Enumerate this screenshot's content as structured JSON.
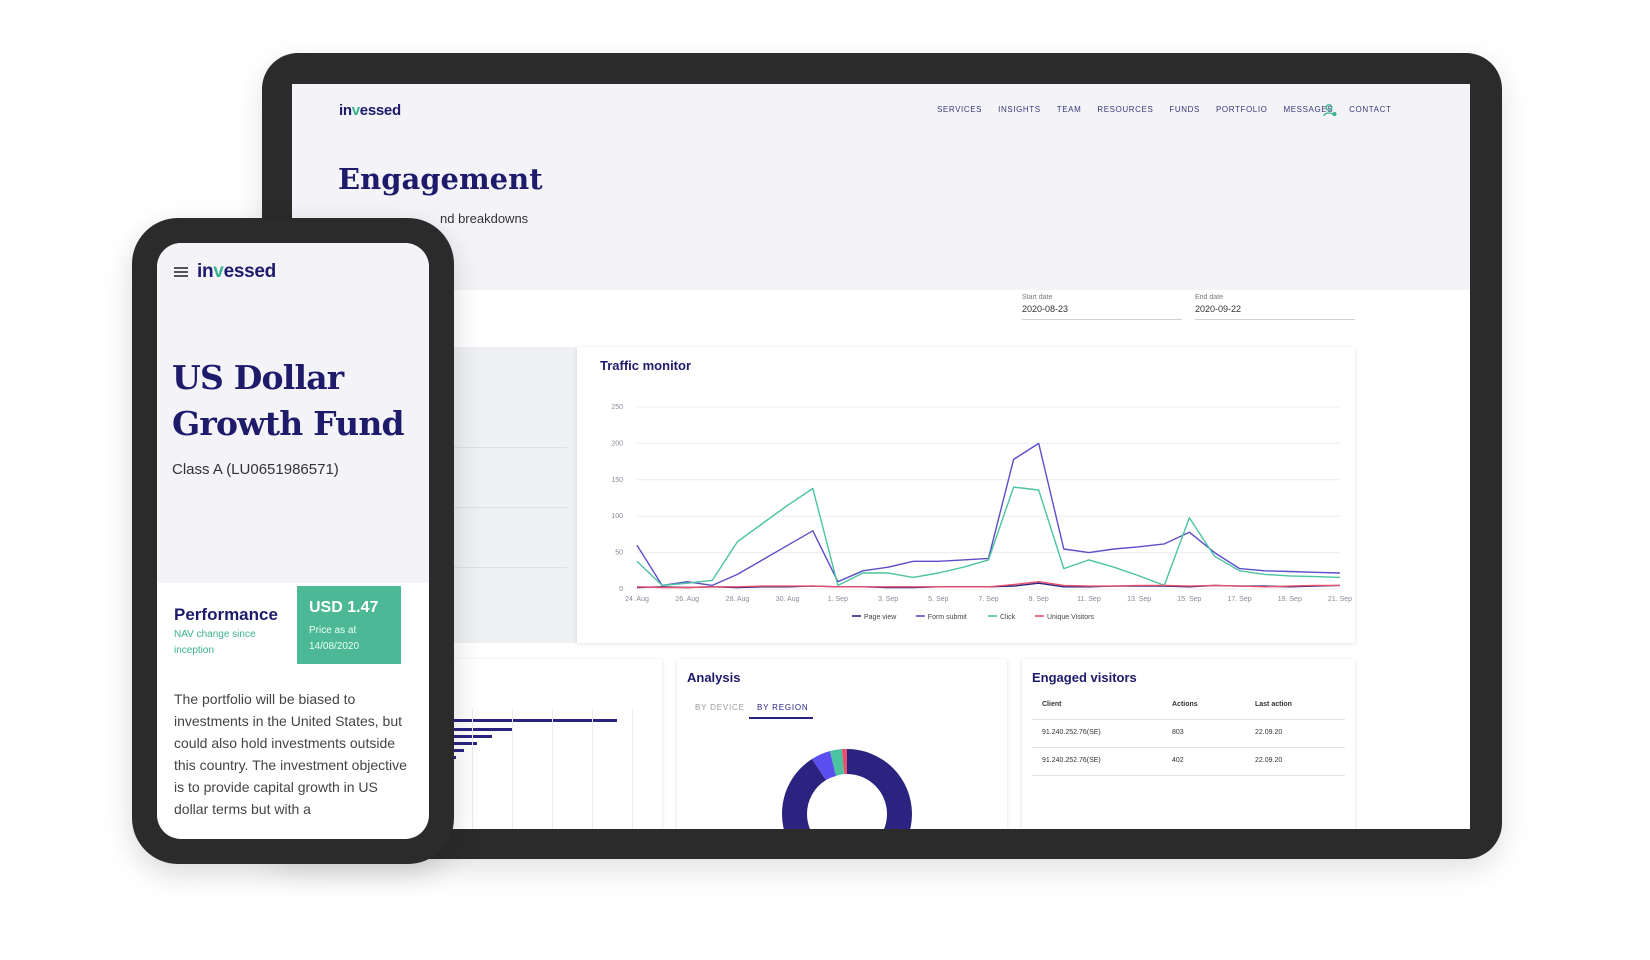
{
  "tablet": {
    "logo": {
      "pre": "in",
      "mark": "v",
      "post": "essed"
    },
    "nav": [
      "SERVICES",
      "INSIGHTS",
      "TEAM",
      "RESOURCES",
      "FUNDS",
      "PORTFOLIO",
      "MESSAGES",
      "CONTACT"
    ],
    "page_title": "Engagement",
    "page_subtitle": "nd breakdowns",
    "start_date": {
      "label": "Start date",
      "value": "2020-08-23"
    },
    "end_date": {
      "label": "End date",
      "value": "2020-09-22"
    },
    "traffic_title": "Traffic monitor",
    "analysis": {
      "title": "Analysis",
      "tabs": [
        "BY DEVICE",
        "BY REGION"
      ],
      "active_tab": "BY REGION"
    },
    "engaged": {
      "title": "Engaged visitors",
      "columns": [
        "Client",
        "Actions",
        "Last action"
      ],
      "rows": [
        [
          "91.240.252.76(SE)",
          "803",
          "22.09.20"
        ],
        [
          "91.240.252.76(SE)",
          "402",
          "22.09.20"
        ]
      ]
    },
    "colors": {
      "navy": "#2a2380",
      "purple": "#5b4fc9",
      "teal": "#4cc3a0",
      "red": "#e8506b",
      "accent": "#39b28f"
    }
  },
  "phone": {
    "logo": {
      "pre": "in",
      "mark": "v",
      "post": "essed"
    },
    "fund_title_1": "US Dollar",
    "fund_title_2": "Growth Fund",
    "fund_class": "Class A (LU0651986571)",
    "performance": "Performance",
    "perf_sub": "NAV change since inception",
    "price": "USD 1.47",
    "price_note_1": "Price as at",
    "price_note_2": "14/08/2020",
    "body_text": "The portfolio will be biased to investments in the United States, but could also hold investments outside this country. The investment objective is to provide capital growth in US dollar terms but with a"
  },
  "chart_data": {
    "type": "line",
    "title": "Traffic monitor",
    "xlabel": "",
    "ylabel": "",
    "ylim": [
      0,
      250
    ],
    "yticks": [
      0,
      50,
      100,
      150,
      200,
      250
    ],
    "x": [
      "24. Aug",
      "25. Aug",
      "26. Aug",
      "27. Aug",
      "28. Aug",
      "29. Aug",
      "30. Aug",
      "31. Aug",
      "1. Sep",
      "2. Sep",
      "3. Sep",
      "4. Sep",
      "5. Sep",
      "6. Sep",
      "7. Sep",
      "8. Sep",
      "9. Sep",
      "10. Sep",
      "11. Sep",
      "12. Sep",
      "13. Sep",
      "14. Sep",
      "15. Sep",
      "16. Sep",
      "17. Sep",
      "18. Sep",
      "19. Sep",
      "20. Sep",
      "21. Sep"
    ],
    "x_tick_labels": [
      "24. Aug",
      "26. Aug",
      "28. Aug",
      "30. Aug",
      "1. Sep",
      "3. Sep",
      "5. Sep",
      "7. Sep",
      "9. Sep",
      "11. Sep",
      "13. Sep",
      "15. Sep",
      "17. Sep",
      "19. Sep",
      "21. Sep"
    ],
    "legend_position": "bottom",
    "grid": true,
    "series": [
      {
        "name": "Page view",
        "color": "#2a2380",
        "values": [
          2,
          3,
          2,
          3,
          2,
          3,
          3,
          4,
          3,
          3,
          2,
          2,
          3,
          3,
          3,
          4,
          8,
          3,
          3,
          4,
          4,
          4,
          3,
          5,
          4,
          4,
          3,
          4,
          5
        ]
      },
      {
        "name": "Form submit",
        "color": "#5b4fc9",
        "values": [
          60,
          5,
          10,
          5,
          20,
          40,
          60,
          80,
          10,
          25,
          30,
          38,
          38,
          40,
          42,
          178,
          200,
          55,
          50,
          55,
          58,
          62,
          78,
          50,
          28,
          25,
          24,
          23,
          22
        ]
      },
      {
        "name": "Click",
        "color": "#4cc3a0",
        "values": [
          38,
          5,
          8,
          12,
          65,
          90,
          115,
          138,
          5,
          22,
          22,
          16,
          22,
          30,
          40,
          140,
          136,
          28,
          40,
          30,
          18,
          5,
          98,
          45,
          25,
          20,
          18,
          17,
          16
        ]
      },
      {
        "name": "Unique Visitors",
        "color": "#e8506b",
        "values": [
          3,
          2,
          2,
          3,
          3,
          4,
          4,
          4,
          3,
          3,
          3,
          3,
          3,
          3,
          3,
          6,
          10,
          5,
          4,
          4,
          5,
          5,
          4,
          5,
          4,
          3,
          4,
          5,
          5
        ]
      }
    ]
  }
}
